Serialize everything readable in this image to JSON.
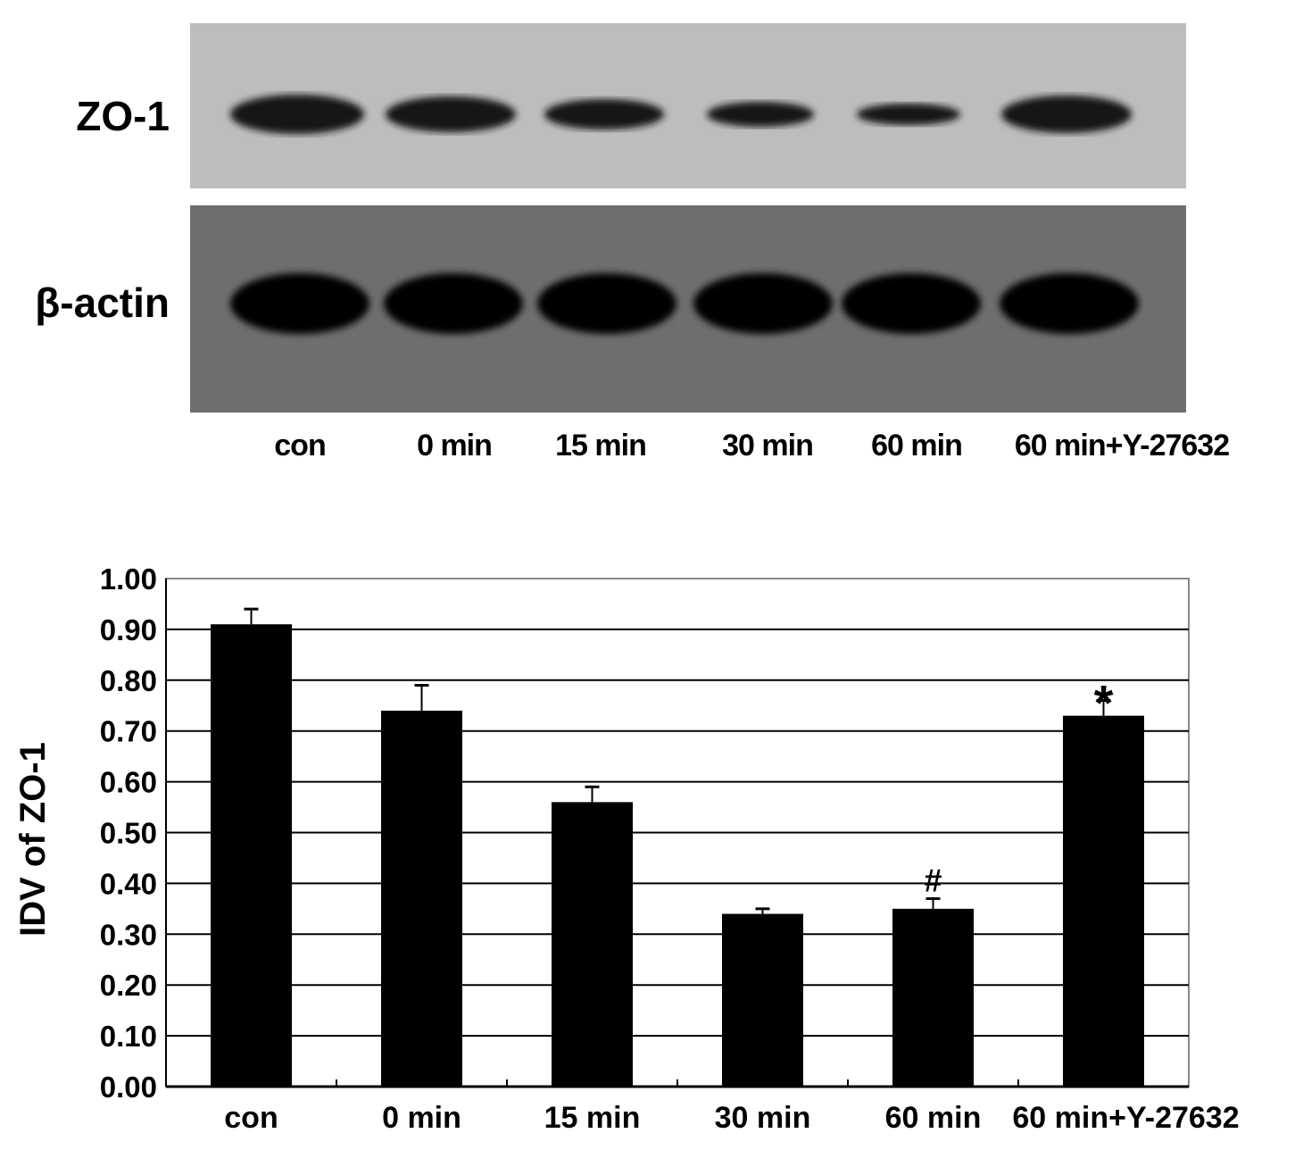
{
  "blot": {
    "rows": [
      {
        "label": "ZO-1"
      },
      {
        "label": "β-actin"
      }
    ],
    "lanes": [
      "con",
      "0 min",
      "15 min",
      "30 min",
      "60 min",
      "60 min+Y-27632"
    ]
  },
  "chart_data": {
    "type": "bar",
    "categories": [
      "con",
      "0 min",
      "15 min",
      "30 min",
      "60 min",
      "60 min+Y-27632"
    ],
    "values": [
      0.91,
      0.74,
      0.56,
      0.34,
      0.35,
      0.73
    ],
    "error_upper": [
      0.94,
      0.79,
      0.59,
      0.35,
      0.37,
      0.76
    ],
    "annotations": [
      "",
      "",
      "",
      "",
      "#",
      "*"
    ],
    "ylabel": "IDV of ZO-1",
    "xlabel": "",
    "ylim": [
      0,
      1.0
    ],
    "yticks": [
      "0.00",
      "0.10",
      "0.20",
      "0.30",
      "0.40",
      "0.50",
      "0.60",
      "0.70",
      "0.80",
      "0.90",
      "1.00"
    ],
    "grid": true,
    "bar_color": "#000000"
  }
}
